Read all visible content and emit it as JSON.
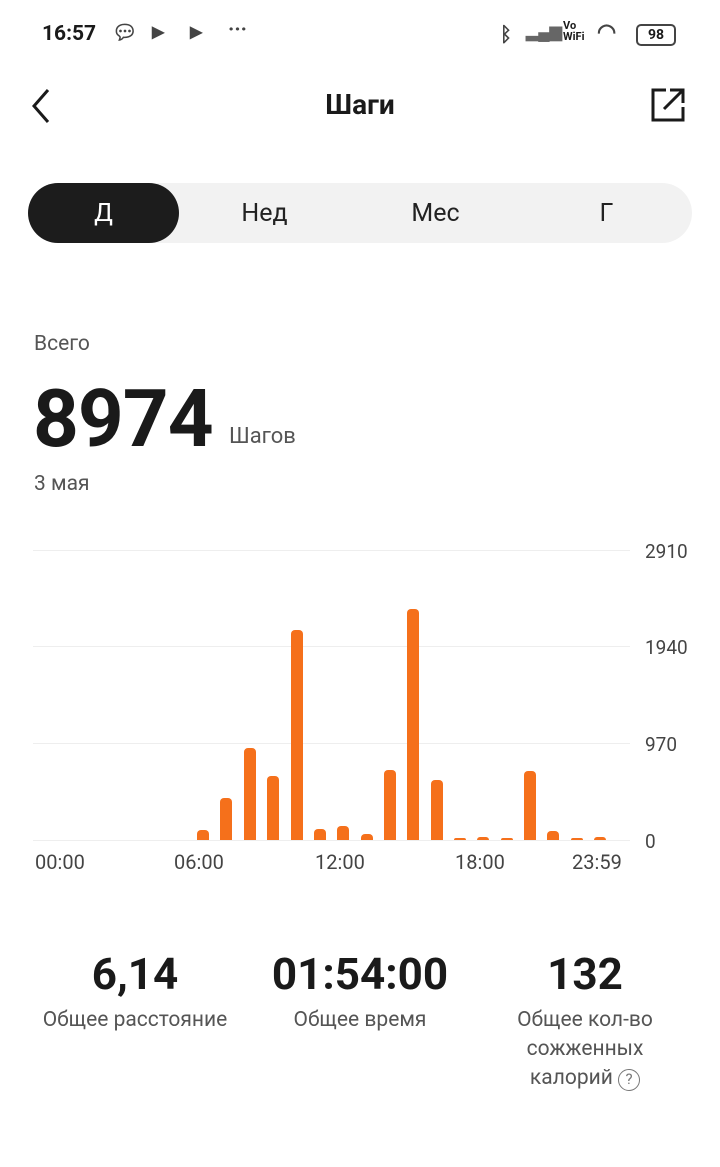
{
  "status_bar": {
    "time": "16:57",
    "battery": "98",
    "icons": [
      "chat-icon",
      "play-icon",
      "play-icon",
      "more-icon",
      "bluetooth-icon",
      "signal-icon",
      "vowifi-icon",
      "wifi-icon",
      "battery-icon"
    ],
    "vowifi": "Vo WiFi"
  },
  "header": {
    "title": "Шаги",
    "back_icon": "chevron-left-icon",
    "share_icon": "share-icon"
  },
  "tabs": [
    {
      "label": "Д",
      "selected": true
    },
    {
      "label": "Нед"
    },
    {
      "label": "Мес"
    },
    {
      "label": "Г"
    }
  ],
  "summary": {
    "label": "Всего",
    "value": "8974",
    "unit": "Шагов",
    "date": "3 мая"
  },
  "chart_data": {
    "type": "bar",
    "color": "#f5701b",
    "x_ticks": [
      "00:00",
      "06:00",
      "12:00",
      "18:00",
      "23:59"
    ],
    "y_ticks": [
      "2910",
      "1940",
      "970",
      "0"
    ],
    "ylim": [
      0,
      2910
    ],
    "grid": true,
    "categories": [
      "00",
      "01",
      "02",
      "03",
      "04",
      "05",
      "06",
      "07",
      "08",
      "09",
      "10",
      "11",
      "12",
      "13",
      "14",
      "15",
      "16",
      "17",
      "18",
      "19",
      "20",
      "21",
      "22",
      "23"
    ],
    "values": [
      0,
      0,
      0,
      0,
      0,
      0,
      100,
      420,
      920,
      640,
      2110,
      110,
      140,
      60,
      700,
      2320,
      600,
      20,
      30,
      20,
      690,
      90,
      20,
      30
    ]
  },
  "stats": [
    {
      "value": "6,14",
      "label": "Общее расстояние"
    },
    {
      "value": "01:54:00",
      "label": "Общее время"
    },
    {
      "value": "132",
      "label": "Общее кол-во сожженных калорий"
    }
  ]
}
